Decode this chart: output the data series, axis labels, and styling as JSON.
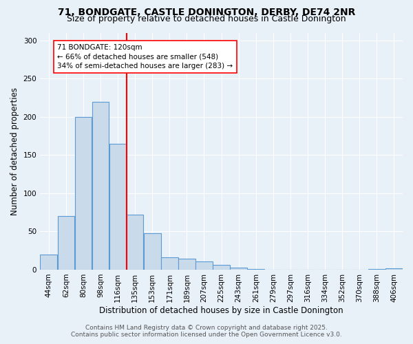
{
  "title1": "71, BONDGATE, CASTLE DONINGTON, DERBY, DE74 2NR",
  "title2": "Size of property relative to detached houses in Castle Donington",
  "xlabel": "Distribution of detached houses by size in Castle Donington",
  "ylabel": "Number of detached properties",
  "bar_labels": [
    "44sqm",
    "62sqm",
    "80sqm",
    "98sqm",
    "116sqm",
    "135sqm",
    "153sqm",
    "171sqm",
    "189sqm",
    "207sqm",
    "225sqm",
    "243sqm",
    "261sqm",
    "279sqm",
    "297sqm",
    "316sqm",
    "334sqm",
    "352sqm",
    "370sqm",
    "388sqm",
    "406sqm"
  ],
  "bar_values": [
    20,
    70,
    200,
    220,
    165,
    72,
    48,
    16,
    14,
    11,
    6,
    3,
    1,
    0,
    0,
    0,
    0,
    0,
    0,
    1,
    2
  ],
  "bar_color": "#c9daea",
  "bar_edge_color": "#5b9bd5",
  "ylim": [
    0,
    310
  ],
  "yticks": [
    0,
    50,
    100,
    150,
    200,
    250,
    300
  ],
  "red_line_x": 4.5,
  "annotation_line1": "71 BONDGATE: 120sqm",
  "annotation_line2": "← 66% of detached houses are smaller (548)",
  "annotation_line3": "34% of semi-detached houses are larger (283) →",
  "footnote1": "Contains HM Land Registry data © Crown copyright and database right 2025.",
  "footnote2": "Contains public sector information licensed under the Open Government Licence v3.0.",
  "background_color": "#e8f0f8",
  "plot_bg_color": "#e8f0f8",
  "grid_color": "#ffffff",
  "title_fontsize": 10,
  "subtitle_fontsize": 9,
  "axis_label_fontsize": 8.5,
  "tick_fontsize": 7.5,
  "annotation_fontsize": 7.5,
  "footnote_fontsize": 6.5
}
